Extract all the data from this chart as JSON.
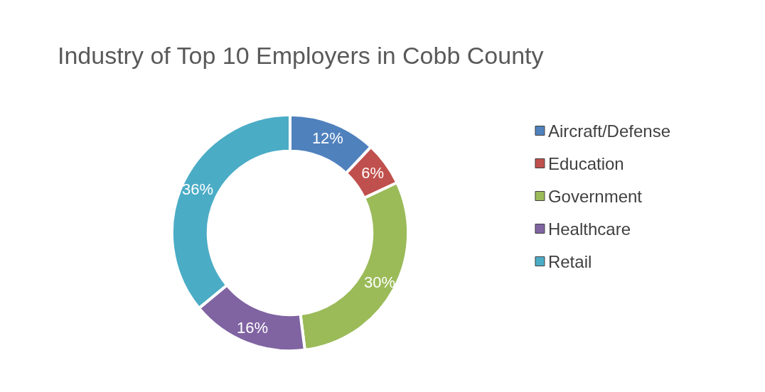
{
  "chart_data": {
    "type": "donut",
    "title": "Industry of Top 10 Employers in Cobb County",
    "categories": [
      "Aircraft/Defense",
      "Education",
      "Government",
      "Healthcare",
      "Retail"
    ],
    "values": [
      12,
      6,
      30,
      16,
      36
    ],
    "colors": [
      "#4f81bd",
      "#c0504d",
      "#9bbb59",
      "#8064a2",
      "#4bacc6"
    ],
    "value_labels": [
      "12%",
      "6%",
      "30%",
      "16%",
      "36%"
    ],
    "legend": "right"
  }
}
